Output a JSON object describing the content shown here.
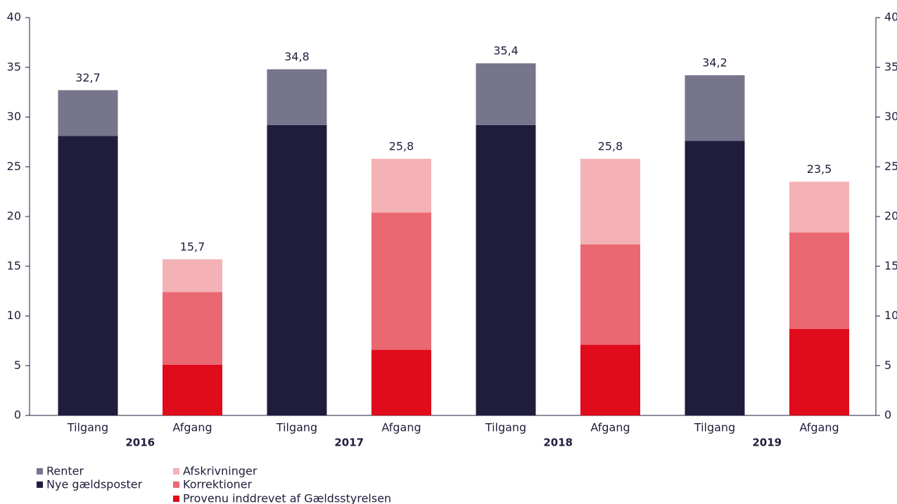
{
  "chart_data": {
    "type": "bar",
    "stacked": true,
    "categories": [
      "Tilgang",
      "Afgang",
      "Tilgang",
      "Afgang",
      "Tilgang",
      "Afgang",
      "Tilgang",
      "Afgang"
    ],
    "groups": [
      "2016",
      "2017",
      "2018",
      "2019"
    ],
    "series": [
      {
        "name": "Renter",
        "color": "#77758c",
        "values": [
          4.6,
          null,
          5.6,
          null,
          6.2,
          null,
          6.6,
          null
        ]
      },
      {
        "name": "Nye gældsposter",
        "color": "#1f1d3b",
        "values": [
          28.1,
          null,
          29.2,
          null,
          29.2,
          null,
          27.6,
          null
        ]
      },
      {
        "name": "Afskrivninger",
        "color": "#f4b2b7",
        "values": [
          null,
          3.3,
          null,
          5.4,
          null,
          8.6,
          null,
          5.1
        ]
      },
      {
        "name": "Korrektioner",
        "color": "#ea6872",
        "values": [
          null,
          7.3,
          null,
          13.8,
          null,
          10.1,
          null,
          9.7
        ]
      },
      {
        "name": "Provenu inddrevet af Gældsstyrelsen",
        "color": "#e00b1b",
        "values": [
          null,
          5.1,
          null,
          6.6,
          null,
          7.1,
          null,
          8.7
        ]
      }
    ],
    "totals": [
      32.7,
      15.7,
      34.8,
      25.8,
      35.4,
      25.8,
      34.2,
      23.5
    ],
    "total_labels": [
      "32,7",
      "15,7",
      "34,8",
      "25,8",
      "35,4",
      "25,8",
      "34,2",
      "23,5"
    ],
    "ylim": [
      0,
      40
    ],
    "yticks": [
      0,
      5,
      10,
      15,
      20,
      25,
      30,
      35,
      40
    ],
    "y2lim": [
      0,
      40
    ],
    "y2ticks": [
      0,
      5,
      10,
      15,
      20,
      25,
      30,
      35,
      40
    ],
    "grid": false
  }
}
